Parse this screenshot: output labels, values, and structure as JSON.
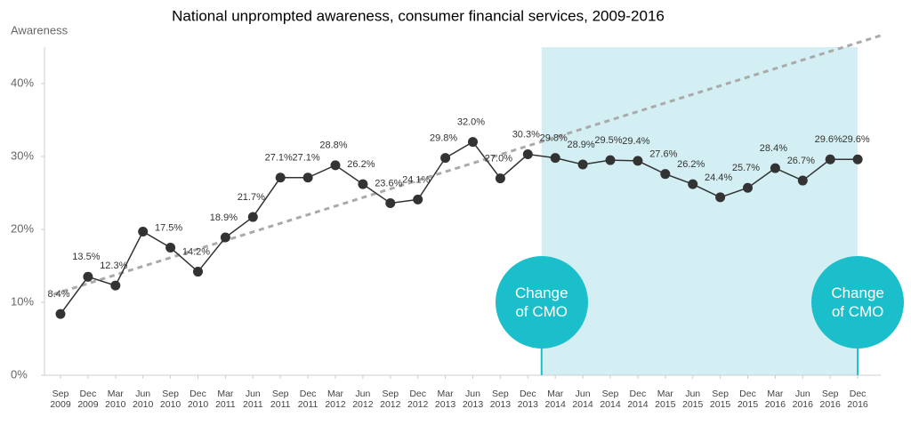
{
  "chart_data": {
    "type": "line",
    "title": "National unprompted awareness, consumer financial services, 2009-2016",
    "y_label": "Awareness",
    "categories": [
      "Sep 2009",
      "Dec 2009",
      "Mar 2010",
      "Jun 2010",
      "Sep 2010",
      "Dec 2010",
      "Mar 2011",
      "Jun 2011",
      "Sep 2011",
      "Dec 2011",
      "Mar 2012",
      "Jun 2012",
      "Sep 2012",
      "Dec 2012",
      "Mar 2013",
      "Jun 2013",
      "Sep 2013",
      "Dec 2013",
      "Mar 2014",
      "Jun 2014",
      "Sep 2014",
      "Dec 2014",
      "Mar 2015",
      "Jun 2015",
      "Sep 2015",
      "Dec 2015",
      "Mar 2016",
      "Jun 2016",
      "Sep 2016",
      "Dec 2016"
    ],
    "values": [
      8.4,
      13.5,
      12.3,
      19.7,
      17.5,
      14.2,
      18.9,
      21.7,
      27.1,
      27.1,
      28.8,
      26.2,
      23.6,
      24.1,
      29.8,
      32.0,
      27.0,
      30.3,
      29.8,
      28.9,
      29.5,
      29.4,
      27.6,
      26.2,
      24.4,
      25.7,
      28.4,
      26.7,
      29.6,
      29.6
    ],
    "value_labels": [
      "8.4%",
      "13.5%",
      "12.3%",
      null,
      "17.5%",
      "14.2%",
      "18.9%",
      "21.7%",
      "27.1%",
      "27.1%",
      "28.8%",
      "26.2%",
      "23.6%",
      "24.1%",
      "29.8%",
      "32.0%",
      "27.0%",
      "30.3%",
      "29.8%",
      "28.9%",
      "29.5%",
      "29.4%",
      "27.6%",
      "26.2%",
      "24.4%",
      "25.7%",
      "28.4%",
      "26.7%",
      "29.6%",
      "29.6%"
    ],
    "color": "#333333",
    "trend": [
      11.4,
      45.6
    ],
    "trend_color": "#aaaaaa",
    "ylim": [
      0,
      45
    ],
    "yticks": [
      {
        "value": 0,
        "label": "0%"
      },
      {
        "value": 10,
        "label": "10%"
      },
      {
        "value": 20,
        "label": "20%"
      },
      {
        "value": 30,
        "label": "30%"
      },
      {
        "value": 40,
        "label": "40%"
      }
    ],
    "shade_color": "#d3eff3",
    "annotation_color": "#1bbfcc",
    "annotations": [
      {
        "label": "Change of CMO"
      },
      {
        "label": "Change of CMO"
      }
    ]
  }
}
